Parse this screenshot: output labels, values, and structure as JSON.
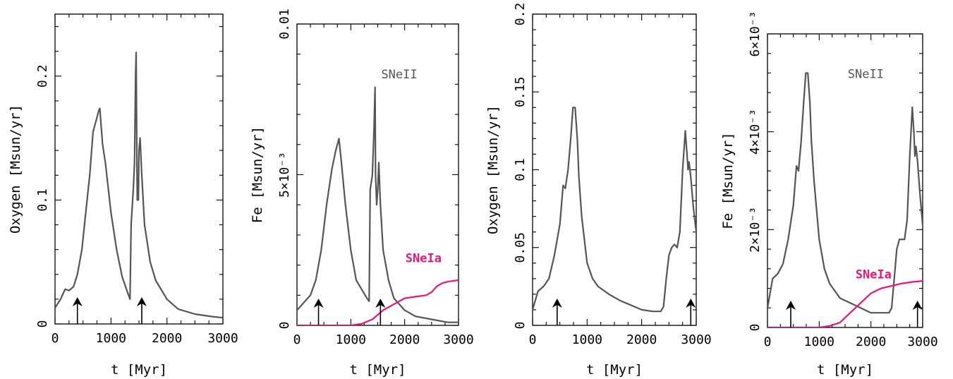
{
  "chart_data": [
    {
      "type": "line",
      "xlabel": "t [Myr]",
      "ylabel": "Oxygen [Msun/yr]",
      "xlim": [
        0,
        3000
      ],
      "ylim": [
        0,
        0.25
      ],
      "xticks": [
        {
          "v": 0,
          "label": "0"
        },
        {
          "v": 1000,
          "label": "1000"
        },
        {
          "v": 2000,
          "label": "2000"
        },
        {
          "v": 3000,
          "label": "3000"
        }
      ],
      "yticks": [
        {
          "v": 0,
          "label": "0"
        },
        {
          "v": 0.1,
          "label": "0.1"
        },
        {
          "v": 0.2,
          "label": "0.2"
        }
      ],
      "series": [
        {
          "name": "",
          "color": "#555555",
          "x": [
            0,
            100,
            180,
            250,
            330,
            400,
            480,
            550,
            620,
            680,
            740,
            780,
            800,
            850,
            900,
            1000,
            1100,
            1200,
            1300,
            1340,
            1360,
            1400,
            1420,
            1440,
            1450,
            1460,
            1470,
            1490,
            1500,
            1520,
            1550,
            1600,
            1700,
            1800,
            2000,
            2200,
            2500,
            2800,
            3000
          ],
          "y": [
            0.013,
            0.02,
            0.028,
            0.027,
            0.03,
            0.04,
            0.06,
            0.09,
            0.12,
            0.155,
            0.165,
            0.172,
            0.174,
            0.145,
            0.13,
            0.09,
            0.06,
            0.038,
            0.025,
            0.02,
            0.08,
            0.11,
            0.13,
            0.2,
            0.219,
            0.15,
            0.1,
            0.1,
            0.14,
            0.15,
            0.12,
            0.08,
            0.05,
            0.035,
            0.02,
            0.012,
            0.008,
            0.006,
            0.005
          ]
        }
      ],
      "annotations": [],
      "arrows_x": [
        400,
        1550
      ]
    },
    {
      "type": "line",
      "xlabel": "t [Myr]",
      "ylabel": "Fe [Msun/yr]",
      "xlim": [
        0,
        3000
      ],
      "ylim": [
        0,
        0.01
      ],
      "xticks": [
        {
          "v": 0,
          "label": "0"
        },
        {
          "v": 1000,
          "label": "1000"
        },
        {
          "v": 2000,
          "label": "2000"
        },
        {
          "v": 3000,
          "label": "3000"
        }
      ],
      "yticks": [
        {
          "v": 0,
          "label": "0"
        },
        {
          "v": 0.005,
          "label": "5×10⁻³"
        },
        {
          "v": 0.01,
          "label": "0.01"
        }
      ],
      "series": [
        {
          "name": "SNeII",
          "color": "#555555",
          "x": [
            0,
            150,
            250,
            350,
            450,
            550,
            650,
            720,
            780,
            820,
            900,
            1000,
            1100,
            1200,
            1300,
            1340,
            1360,
            1400,
            1430,
            1450,
            1460,
            1480,
            1500,
            1520,
            1550,
            1600,
            1700,
            1800,
            2000,
            2200,
            2500,
            2800,
            3000
          ],
          "y": [
            0.0005,
            0.0008,
            0.001,
            0.0015,
            0.0025,
            0.004,
            0.0052,
            0.0058,
            0.0062,
            0.0055,
            0.004,
            0.0025,
            0.0015,
            0.0012,
            0.0009,
            0.0008,
            0.0045,
            0.005,
            0.0065,
            0.0079,
            0.005,
            0.004,
            0.0045,
            0.0054,
            0.004,
            0.0025,
            0.0015,
            0.0009,
            0.0005,
            0.0003,
            0.0002,
            0.0001,
            0.0001
          ]
        },
        {
          "name": "SNeIa",
          "color": "#e8157a",
          "x": [
            0,
            1000,
            1200,
            1400,
            1600,
            1800,
            1900,
            2000,
            2200,
            2400,
            2500,
            2600,
            2700,
            2800,
            3000
          ],
          "y": [
            0,
            0,
            5e-05,
            0.0002,
            0.0005,
            0.0007,
            0.0008,
            0.0009,
            0.00095,
            0.001,
            0.0011,
            0.0013,
            0.0014,
            0.00145,
            0.0015
          ]
        }
      ],
      "annotations": [
        {
          "text": "SNeII",
          "color": "#555555",
          "x": 1900,
          "y": 0.0082
        },
        {
          "text": "SNeIa",
          "color": "#e8157a",
          "x": 2350,
          "y": 0.0021
        }
      ],
      "arrows_x": [
        400,
        1550
      ]
    },
    {
      "type": "line",
      "xlabel": "t [Myr]",
      "ylabel": "Oxygen [Msun/yr]",
      "xlim": [
        0,
        3000
      ],
      "ylim": [
        0,
        0.2
      ],
      "xticks": [
        {
          "v": 0,
          "label": "0"
        },
        {
          "v": 1000,
          "label": "1000"
        },
        {
          "v": 2000,
          "label": "2000"
        },
        {
          "v": 3000,
          "label": "3000"
        }
      ],
      "yticks": [
        {
          "v": 0,
          "label": "0"
        },
        {
          "v": 0.05,
          "label": "0.05"
        },
        {
          "v": 0.1,
          "label": "0.1"
        },
        {
          "v": 0.15,
          "label": "0.15"
        },
        {
          "v": 0.2,
          "label": "0.2"
        }
      ],
      "series": [
        {
          "name": "",
          "color": "#555555",
          "x": [
            0,
            100,
            200,
            300,
            400,
            500,
            560,
            600,
            650,
            700,
            740,
            780,
            820,
            850,
            900,
            1000,
            1100,
            1200,
            1400,
            1600,
            1800,
            2000,
            2200,
            2350,
            2400,
            2450,
            2500,
            2550,
            2600,
            2650,
            2700,
            2750,
            2800,
            2830,
            2850,
            2870,
            2900,
            2950,
            3000
          ],
          "y": [
            0.01,
            0.022,
            0.025,
            0.03,
            0.045,
            0.065,
            0.09,
            0.088,
            0.1,
            0.12,
            0.14,
            0.14,
            0.12,
            0.095,
            0.07,
            0.04,
            0.03,
            0.025,
            0.02,
            0.016,
            0.013,
            0.01,
            0.009,
            0.009,
            0.012,
            0.03,
            0.045,
            0.05,
            0.052,
            0.05,
            0.06,
            0.1,
            0.125,
            0.11,
            0.1,
            0.105,
            0.095,
            0.075,
            0.06
          ]
        }
      ],
      "annotations": [],
      "arrows_x": [
        450,
        2900
      ]
    },
    {
      "type": "line",
      "xlabel": "t [Myr]",
      "ylabel": "Fe [Msun/yr]",
      "xlim": [
        0,
        3000
      ],
      "ylim": [
        0,
        0.006
      ],
      "xticks": [
        {
          "v": 0,
          "label": "0"
        },
        {
          "v": 1000,
          "label": "1000"
        },
        {
          "v": 2000,
          "label": "2000"
        },
        {
          "v": 3000,
          "label": "3000"
        }
      ],
      "yticks": [
        {
          "v": 0,
          "label": "0"
        },
        {
          "v": 0.002,
          "label": "2×10⁻³"
        },
        {
          "v": 0.004,
          "label": "4×10⁻³"
        },
        {
          "v": 0.006,
          "label": "6×10⁻³"
        }
      ],
      "series": [
        {
          "name": "SNeII",
          "color": "#555555",
          "x": [
            0,
            100,
            200,
            300,
            400,
            500,
            560,
            600,
            650,
            700,
            740,
            780,
            820,
            850,
            900,
            1000,
            1100,
            1200,
            1400,
            1600,
            1800,
            2000,
            2200,
            2350,
            2400,
            2450,
            2500,
            2550,
            2600,
            2650,
            2700,
            2750,
            2800,
            2830,
            2850,
            2870,
            2900,
            2950,
            3000
          ],
          "y": [
            0.0004,
            0.001,
            0.0011,
            0.0013,
            0.0018,
            0.0025,
            0.0033,
            0.0032,
            0.0038,
            0.0046,
            0.0052,
            0.0052,
            0.0046,
            0.0038,
            0.003,
            0.0018,
            0.0012,
            0.0009,
            0.0006,
            0.0005,
            0.0004,
            0.0003,
            0.0003,
            0.0003,
            0.0004,
            0.001,
            0.0016,
            0.0018,
            0.0018,
            0.0018,
            0.0022,
            0.0035,
            0.0045,
            0.004,
            0.0035,
            0.0037,
            0.0034,
            0.0027,
            0.0021
          ]
        },
        {
          "name": "SNeIa",
          "color": "#e8157a",
          "x": [
            0,
            1000,
            1200,
            1400,
            1600,
            1800,
            1900,
            2000,
            2200,
            2400,
            2600,
            2800,
            3000
          ],
          "y": [
            0,
            0,
            3e-05,
            0.0001,
            0.0003,
            0.0005,
            0.0006,
            0.0007,
            0.0008,
            0.00085,
            0.0009,
            0.00093,
            0.00095
          ]
        }
      ],
      "annotations": [
        {
          "text": "SNeII",
          "color": "#555555",
          "x": 1900,
          "y": 0.0051
        },
        {
          "text": "SNeIa",
          "color": "#e8157a",
          "x": 2050,
          "y": 0.001
        }
      ],
      "arrows_x": [
        450,
        2900
      ]
    }
  ]
}
